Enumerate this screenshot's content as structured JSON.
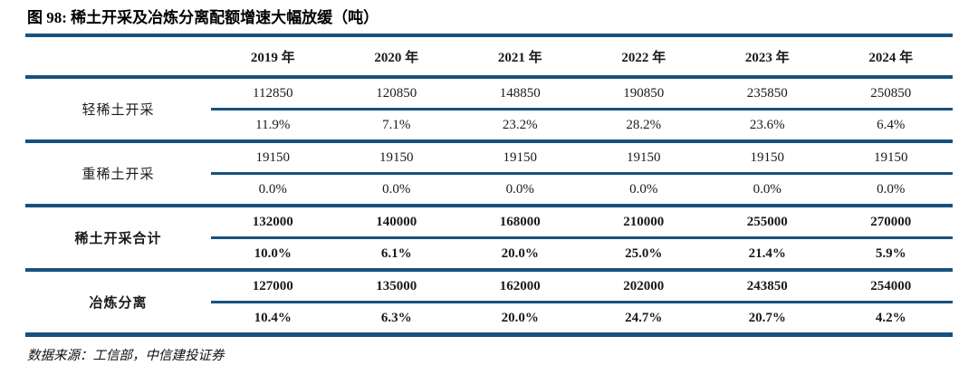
{
  "figure": {
    "title": "图 98: 稀土开采及冶炼分离配额增速大幅放缓（吨）",
    "source": "数据来源：工信部，中信建投证券"
  },
  "colors": {
    "rule_navy": "#17527E",
    "text": "#1A1A1A",
    "background": "#FFFFFF"
  },
  "table": {
    "year_headers": [
      "2019 年",
      "2020 年",
      "2021 年",
      "2022 年",
      "2023 年",
      "2024 年"
    ],
    "sections": [
      {
        "label": "轻稀土开采",
        "values": [
          "112850",
          "120850",
          "148850",
          "190850",
          "235850",
          "250850"
        ],
        "growth": [
          "11.9%",
          "7.1%",
          "23.2%",
          "28.2%",
          "23.6%",
          "6.4%"
        ]
      },
      {
        "label": "重稀土开采",
        "values": [
          "19150",
          "19150",
          "19150",
          "19150",
          "19150",
          "19150"
        ],
        "growth": [
          "0.0%",
          "0.0%",
          "0.0%",
          "0.0%",
          "0.0%",
          "0.0%"
        ]
      },
      {
        "label": "稀土开采合计",
        "values": [
          "132000",
          "140000",
          "168000",
          "210000",
          "255000",
          "270000"
        ],
        "growth": [
          "10.0%",
          "6.1%",
          "20.0%",
          "25.0%",
          "21.4%",
          "5.9%"
        ]
      },
      {
        "label": "冶炼分离",
        "values": [
          "127000",
          "135000",
          "162000",
          "202000",
          "243850",
          "254000"
        ],
        "growth": [
          "10.4%",
          "6.3%",
          "20.0%",
          "24.7%",
          "20.7%",
          "4.2%"
        ]
      }
    ]
  }
}
